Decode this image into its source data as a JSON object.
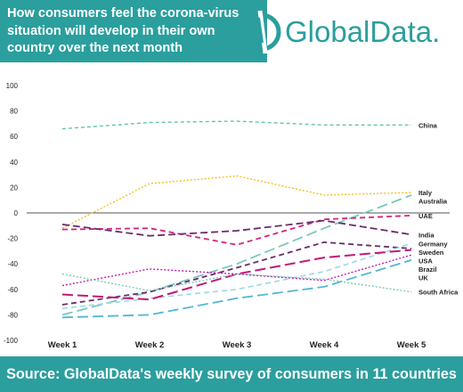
{
  "header": {
    "title": "How consumers feel the corona-virus situation will develop in their own country over the next month",
    "logo_text": "GlobalData.",
    "colors": {
      "banner": "#2b9e9e",
      "logo": "#2b9e9e"
    }
  },
  "footer": {
    "source": "Source: GlobalData's weekly survey of consumers in 11 countries"
  },
  "chart_data": {
    "type": "line",
    "categories": [
      "Week 1",
      "Week 2",
      "Week 3",
      "Week 4",
      "Week 5"
    ],
    "ylim": [
      -100,
      100
    ],
    "yticks": [
      100,
      80,
      60,
      40,
      20,
      0,
      -20,
      -40,
      -60,
      -80,
      -100
    ],
    "legend": "right-end labels",
    "series": [
      {
        "name": "China",
        "values": [
          66,
          71,
          72,
          69,
          69
        ],
        "color": "#66c2b0",
        "dash": "4,3",
        "width": 1.4
      },
      {
        "name": "Italy",
        "values": [
          -12,
          23,
          29,
          14,
          16
        ],
        "color": "#f5bf1d",
        "dash": "2,2",
        "width": 1.4
      },
      {
        "name": "Australia",
        "values": [
          -80,
          -62,
          -40,
          -12,
          14
        ],
        "color": "#7bc8bc",
        "dash": "12,5",
        "width": 1.8
      },
      {
        "name": "UAE",
        "values": [
          -13,
          -12,
          -25,
          -5,
          -2
        ],
        "color": "#d6247a",
        "dash": "6,4",
        "width": 1.8
      },
      {
        "name": "India",
        "values": [
          -9,
          -18,
          -14,
          -6,
          -17
        ],
        "color": "#6a2c6e",
        "dash": "8,4",
        "width": 1.8
      },
      {
        "name": "Sweden",
        "values": [
          -72,
          -62,
          -43,
          -23,
          -28
        ],
        "color": "#6a2c6e",
        "dash": "6,4",
        "width": 1.8
      },
      {
        "name": "Germany",
        "values": [
          -75,
          -67,
          -60,
          -46,
          -24
        ],
        "color": "#9dd9e6",
        "dash": "6,4",
        "width": 1.6
      },
      {
        "name": "USA",
        "values": [
          -64,
          -68,
          -48,
          -35,
          -29
        ],
        "color": "#c2187a",
        "dash": "12,5",
        "width": 2.0
      },
      {
        "name": "Brazil",
        "values": [
          -57,
          -44,
          -48,
          -53,
          -33
        ],
        "color": "#c51bb0",
        "dash": "2,2",
        "width": 1.4
      },
      {
        "name": "UK",
        "values": [
          -82,
          -80,
          -67,
          -58,
          -37
        ],
        "color": "#52b7d3",
        "dash": "12,5",
        "width": 1.8
      },
      {
        "name": "South Africa",
        "values": [
          -48,
          -61,
          -48,
          -52,
          -62
        ],
        "color": "#7bc8bc",
        "dash": "2,2",
        "width": 1.4
      }
    ]
  }
}
